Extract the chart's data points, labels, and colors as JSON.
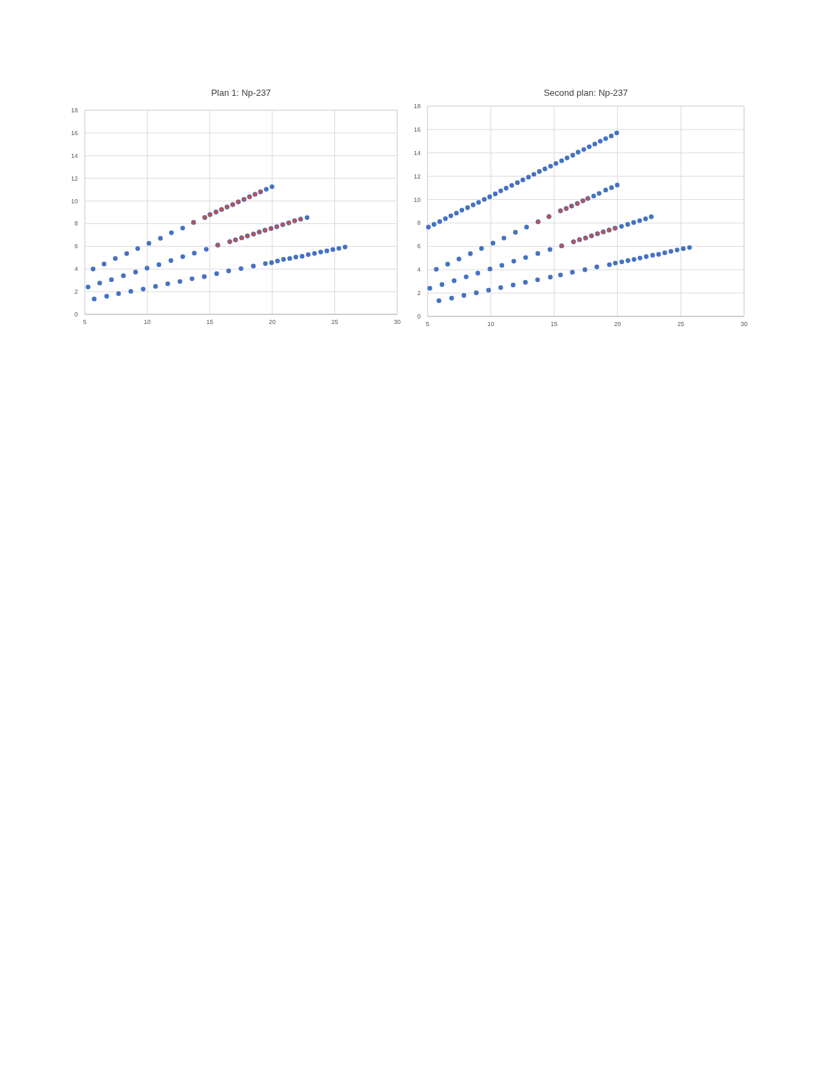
{
  "chart_data": [
    {
      "type": "scatter",
      "title": "Plan 1: Np-237",
      "xlim": [
        5,
        30
      ],
      "ylim": [
        0,
        18
      ],
      "xticks": [
        5,
        10,
        15,
        20,
        25,
        30
      ],
      "yticks": [
        0,
        2,
        4,
        6,
        8,
        10,
        12,
        14,
        16,
        18
      ],
      "grid": true,
      "marker": "circle",
      "series": [
        {
          "color": "#4472c4",
          "x": [
            5.66,
            6.54,
            7.44,
            8.35,
            9.23,
            10.13,
            11.05,
            11.93,
            12.83,
            19.52,
            19.98
          ],
          "values": [
            4.0,
            4.44,
            4.93,
            5.36,
            5.8,
            6.27,
            6.71,
            7.2,
            7.61,
            11.03,
            11.26
          ]
        },
        {
          "color": "#4472c4",
          "x": [
            5.26,
            6.19,
            7.13,
            8.09,
            9.06,
            9.98,
            10.93,
            11.89,
            12.84,
            13.76,
            14.72,
            22.79
          ],
          "values": [
            2.41,
            2.76,
            3.06,
            3.41,
            3.73,
            4.08,
            4.38,
            4.75,
            5.09,
            5.4,
            5.74,
            8.54
          ]
        },
        {
          "color": "#4472c4",
          "x": [
            5.75,
            6.75,
            7.7,
            8.68,
            9.67,
            10.66,
            11.64,
            12.61,
            13.58,
            14.56,
            15.55,
            16.51,
            17.5,
            18.49,
            19.45,
            19.94,
            20.42,
            20.9,
            21.4,
            21.89,
            22.39,
            22.88,
            23.38,
            23.88,
            24.37,
            24.85,
            25.33,
            25.83
          ],
          "values": [
            1.36,
            1.6,
            1.83,
            2.03,
            2.23,
            2.47,
            2.7,
            2.9,
            3.14,
            3.33,
            3.59,
            3.83,
            4.04,
            4.26,
            4.48,
            4.56,
            4.71,
            4.85,
            4.93,
            5.05,
            5.13,
            5.27,
            5.38,
            5.5,
            5.6,
            5.72,
            5.82,
            5.94
          ]
        },
        {
          "color": "#c0504d",
          "x": [
            13.7,
            14.6,
            15.02,
            15.5,
            15.94,
            16.38,
            16.84,
            17.28,
            17.74,
            18.18,
            18.62,
            19.06,
            15.64,
            16.6,
            17.06,
            17.55,
            18.01,
            18.5,
            18.96,
            19.42,
            19.9,
            20.36,
            20.84,
            21.32,
            21.79,
            22.27
          ],
          "values": [
            8.11,
            8.54,
            8.8,
            9.03,
            9.25,
            9.47,
            9.68,
            9.92,
            10.14,
            10.37,
            10.59,
            10.81,
            6.11,
            6.41,
            6.57,
            6.75,
            6.92,
            7.08,
            7.26,
            7.42,
            7.57,
            7.73,
            7.91,
            8.07,
            8.26,
            8.4
          ]
        }
      ]
    },
    {
      "type": "scatter",
      "title": "Second plan: Np-237",
      "xlim": [
        5,
        30
      ],
      "ylim": [
        0,
        18
      ],
      "xticks": [
        5,
        10,
        15,
        20,
        25,
        30
      ],
      "yticks": [
        0,
        2,
        4,
        6,
        8,
        10,
        12,
        14,
        16,
        18
      ],
      "grid": true,
      "marker": "circle",
      "series": [
        {
          "color": "#4472c4",
          "x": [
            5.07,
            5.51,
            5.96,
            6.41,
            6.84,
            7.28,
            7.71,
            8.16,
            8.6,
            9.03,
            9.48,
            9.91,
            10.35,
            10.78,
            11.21,
            11.65,
            12.1,
            12.53,
            12.97,
            13.4,
            13.83,
            14.27,
            14.72,
            15.14,
            15.59,
            16.02,
            16.47,
            16.89,
            17.34,
            17.77,
            18.21,
            18.64,
            19.07,
            19.51,
            19.94
          ],
          "values": [
            7.65,
            7.88,
            8.12,
            8.37,
            8.61,
            8.84,
            9.1,
            9.31,
            9.55,
            9.76,
            10.02,
            10.24,
            10.49,
            10.75,
            10.98,
            11.22,
            11.45,
            11.69,
            11.92,
            12.16,
            12.41,
            12.63,
            12.86,
            13.1,
            13.33,
            13.57,
            13.8,
            14.06,
            14.29,
            14.53,
            14.76,
            15.0,
            15.22,
            15.45,
            15.71
          ]
        },
        {
          "color": "#4472c4",
          "x": [
            5.69,
            6.59,
            7.48,
            8.38,
            9.26,
            10.17,
            11.03,
            11.94,
            12.82,
            18.12,
            18.55,
            19.07,
            19.53,
            19.98
          ],
          "values": [
            4.04,
            4.47,
            4.92,
            5.37,
            5.82,
            6.27,
            6.71,
            7.2,
            7.65,
            10.31,
            10.53,
            10.82,
            11.02,
            11.25
          ]
        },
        {
          "color": "#4472c4",
          "x": [
            5.18,
            6.14,
            7.1,
            8.05,
            8.97,
            9.93,
            10.87,
            11.81,
            12.75,
            13.71,
            14.67,
            20.32,
            20.81,
            21.28,
            21.75,
            22.22,
            22.67
          ],
          "values": [
            2.41,
            2.73,
            3.06,
            3.39,
            3.71,
            4.06,
            4.37,
            4.73,
            5.04,
            5.39,
            5.73,
            7.71,
            7.88,
            8.04,
            8.2,
            8.35,
            8.53
          ]
        },
        {
          "color": "#4472c4",
          "x": [
            5.9,
            6.9,
            7.87,
            8.85,
            9.82,
            10.78,
            11.76,
            12.73,
            13.69,
            14.7,
            15.5,
            16.44,
            17.43,
            18.37,
            19.36,
            19.83,
            20.34,
            20.83,
            21.31,
            21.78,
            22.27,
            22.78,
            23.25,
            23.74,
            24.22,
            24.71,
            25.2,
            25.69
          ],
          "values": [
            1.35,
            1.57,
            1.8,
            2.02,
            2.25,
            2.47,
            2.69,
            2.92,
            3.14,
            3.37,
            3.55,
            3.78,
            4.0,
            4.24,
            4.43,
            4.57,
            4.67,
            4.78,
            4.88,
            5.0,
            5.12,
            5.24,
            5.31,
            5.45,
            5.57,
            5.69,
            5.8,
            5.9
          ]
        },
        {
          "color": "#c0504d",
          "x": [
            13.73,
            14.59,
            15.5,
            15.95,
            16.38,
            16.83,
            17.27,
            17.66,
            15.59,
            16.53,
            17.0,
            17.48,
            17.95,
            18.42,
            18.88,
            19.34,
            19.81
          ],
          "values": [
            8.1,
            8.55,
            9.04,
            9.24,
            9.45,
            9.67,
            9.9,
            10.1,
            6.04,
            6.39,
            6.57,
            6.71,
            6.9,
            7.08,
            7.24,
            7.39,
            7.55
          ]
        }
      ]
    }
  ]
}
